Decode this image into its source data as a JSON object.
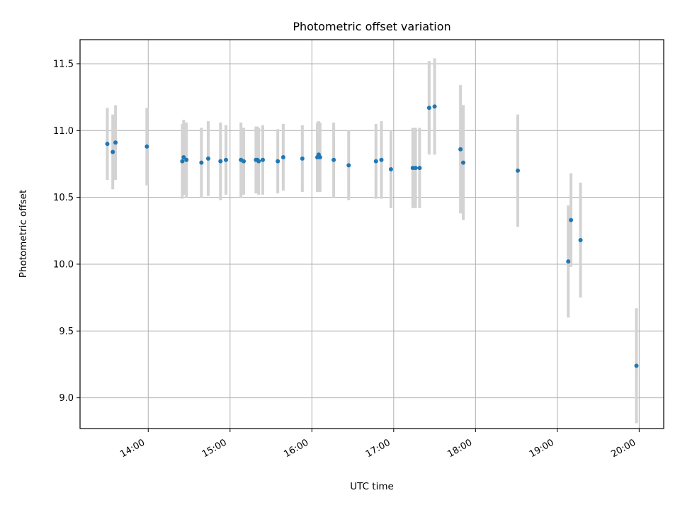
{
  "chart_data": {
    "type": "scatter",
    "title": "Photometric offset variation",
    "xlabel": "UTC time",
    "ylabel": "Photometric offset",
    "x_ticks": [
      "14:00",
      "15:00",
      "16:00",
      "17:00",
      "18:00",
      "19:00",
      "20:00"
    ],
    "y_ticks": [
      "9.0",
      "9.5",
      "10.0",
      "10.5",
      "11.0",
      "11.5"
    ],
    "xlim": [
      "13:10",
      "20:18"
    ],
    "ylim": [
      8.77,
      11.68
    ],
    "grid": true,
    "colors": {
      "points": "#1f77b4",
      "error_bars": "#d3d3d3",
      "grid": "#b0b0b0"
    },
    "points": [
      {
        "x": "13:30",
        "y": 10.9,
        "err": 0.27
      },
      {
        "x": "13:34",
        "y": 10.84,
        "err": 0.28
      },
      {
        "x": "13:36",
        "y": 10.91,
        "err": 0.28
      },
      {
        "x": "13:59",
        "y": 10.88,
        "err": 0.29
      },
      {
        "x": "14:25",
        "y": 10.77,
        "err": 0.28
      },
      {
        "x": "14:26",
        "y": 10.8,
        "err": 0.28
      },
      {
        "x": "14:28",
        "y": 10.78,
        "err": 0.28
      },
      {
        "x": "14:39",
        "y": 10.76,
        "err": 0.26
      },
      {
        "x": "14:44",
        "y": 10.79,
        "err": 0.28
      },
      {
        "x": "14:53",
        "y": 10.77,
        "err": 0.29
      },
      {
        "x": "14:57",
        "y": 10.78,
        "err": 0.26
      },
      {
        "x": "15:08",
        "y": 10.78,
        "err": 0.28
      },
      {
        "x": "15:10",
        "y": 10.77,
        "err": 0.25
      },
      {
        "x": "15:19",
        "y": 10.78,
        "err": 0.25
      },
      {
        "x": "15:20",
        "y": 10.78,
        "err": 0.25
      },
      {
        "x": "15:21",
        "y": 10.77,
        "err": 0.25
      },
      {
        "x": "15:24",
        "y": 10.78,
        "err": 0.26
      },
      {
        "x": "15:35",
        "y": 10.77,
        "err": 0.24
      },
      {
        "x": "15:39",
        "y": 10.8,
        "err": 0.25
      },
      {
        "x": "15:53",
        "y": 10.79,
        "err": 0.25
      },
      {
        "x": "16:04",
        "y": 10.8,
        "err": 0.26
      },
      {
        "x": "16:05",
        "y": 10.82,
        "err": 0.25
      },
      {
        "x": "16:06",
        "y": 10.8,
        "err": 0.26
      },
      {
        "x": "16:16",
        "y": 10.78,
        "err": 0.28
      },
      {
        "x": "16:27",
        "y": 10.74,
        "err": 0.26
      },
      {
        "x": "16:47",
        "y": 10.77,
        "err": 0.28
      },
      {
        "x": "16:51",
        "y": 10.78,
        "err": 0.29
      },
      {
        "x": "16:58",
        "y": 10.71,
        "err": 0.29
      },
      {
        "x": "17:14",
        "y": 10.72,
        "err": 0.3
      },
      {
        "x": "17:16",
        "y": 10.72,
        "err": 0.3
      },
      {
        "x": "17:19",
        "y": 10.72,
        "err": 0.3
      },
      {
        "x": "17:26",
        "y": 11.17,
        "err": 0.35
      },
      {
        "x": "17:30",
        "y": 11.18,
        "err": 0.36
      },
      {
        "x": "17:49",
        "y": 10.86,
        "err": 0.48
      },
      {
        "x": "17:51",
        "y": 10.76,
        "err": 0.43
      },
      {
        "x": "18:31",
        "y": 10.7,
        "err": 0.42
      },
      {
        "x": "19:08",
        "y": 10.02,
        "err": 0.42
      },
      {
        "x": "19:10",
        "y": 10.33,
        "err": 0.35
      },
      {
        "x": "19:17",
        "y": 10.18,
        "err": 0.43
      },
      {
        "x": "19:58",
        "y": 9.24,
        "err": 0.43
      }
    ]
  }
}
